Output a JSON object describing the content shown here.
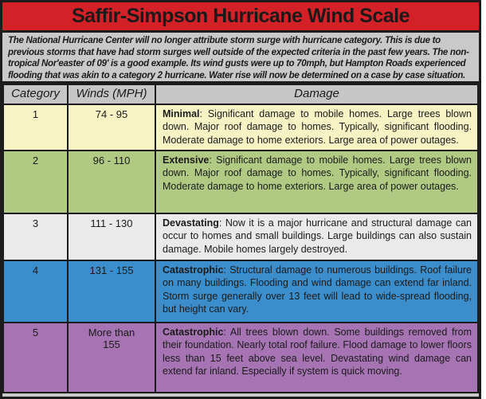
{
  "poster": {
    "title": "Saffir-Simpson Hurricane Wind Scale",
    "intro": "The National Hurricane Center will no longer attribute storm surge with hurricane category.  This is due to previous storms that have had storm surges well outside of the expected criteria in the past few years.  The non-tropical Nor'easter of 09' is a good example. Its wind gusts were up to 70mph, but Hampton Roads experienced flooding that was akin to a category 2 hurricane.  Water rise will now be determined on a case by case situation."
  },
  "table": {
    "headers": {
      "category": "Category",
      "winds": "Winds (MPH)",
      "damage": "Damage"
    },
    "rows": [
      {
        "category": "1",
        "winds": "74 - 95",
        "damage_label": "Minimal",
        "damage_text": ": Significant damage to mobile homes.  Large trees blown down.  Major roof damage to homes. Typically, significant flooding. Moderate damage to home exteriors.  Large area of power outages."
      },
      {
        "category": "2",
        "winds": "96 - 110",
        "damage_label": "Extensive",
        "damage_text": ": Significant damage to mobile homes.  Large trees blown down.  Major roof damage to homes. Typically, significant flooding.  Moderate damage to home exteriors.  Large area of power outages."
      },
      {
        "category": "3",
        "winds": "111 - 130",
        "damage_label": "Devastating",
        "damage_text": ": Now it is a major hurricane and structural damage can occur to homes and small buildings.  Large buildings can also sustain damage.  Mobile homes largely destroyed."
      },
      {
        "category": "4",
        "winds": "131 - 155",
        "damage_label": "Catastrophic",
        "damage_text": ": Structural damage to numerous buildings.  Roof failure on many buildings. Flooding and wind damage can extend far inland.  Storm surge generally over 13 feet will lead to wide-spread flooding, but height can vary."
      },
      {
        "category": "5",
        "winds": "More than\n155",
        "damage_label": "Catastrophic",
        "damage_text": ": All trees blown down.  Some buildings removed from their foundation.  Nearly total roof failure.  Flood damage to lower floors less than 15 feet above sea level.  Devastating wind damage can extend far inland.  Especially if system is quick moving."
      }
    ]
  },
  "colors": {
    "title-bg": "#d32127",
    "intro-bg": "#c9c9c9",
    "header-bg": "#c6c6c6",
    "row1-bg": "#f7f3c5",
    "row2-bg": "#b1ca83",
    "row3-bg": "#eaeaea",
    "row4-bg": "#3b8ecb",
    "row5-bg": "#a774b3",
    "border": "#1c1c1c",
    "text": "#1a1a1a"
  }
}
